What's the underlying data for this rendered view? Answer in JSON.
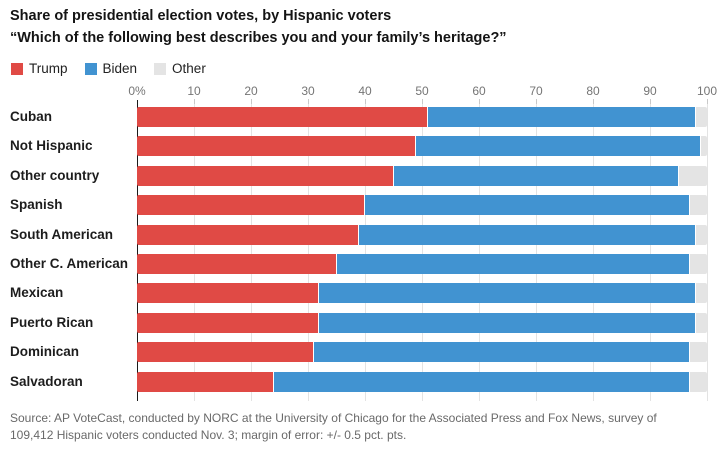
{
  "header": {
    "title": "Share of presidential election votes, by Hispanic voters",
    "subtitle": "“Which of the following best describes you and your family’s heritage?”"
  },
  "colors": {
    "trump_red": "#e04a45",
    "biden_blue": "#4193d1",
    "other_gray": "#e4e4e4",
    "axis_line": "#1a1a1a",
    "gridline": "#e3e3e3",
    "text_dark": "#141414",
    "text_muted": "#696969"
  },
  "axis": {
    "tick_values": [
      0,
      10,
      20,
      30,
      40,
      50,
      60,
      70,
      80,
      90,
      100
    ],
    "tick_labels": [
      "0%",
      "10",
      "20",
      "30",
      "40",
      "50",
      "60",
      "70",
      "80",
      "90",
      "100"
    ]
  },
  "chart_data": {
    "type": "bar",
    "orientation": "horizontal",
    "stacked": true,
    "title": "Share of presidential election votes, by Hispanic voters",
    "xlabel": "",
    "ylabel": "",
    "xlim": [
      0,
      100
    ],
    "grid": true,
    "legend_position": "top",
    "categories": [
      "Cuban",
      "Not Hispanic",
      "Other country",
      "Spanish",
      "South American",
      "Other C. American",
      "Mexican",
      "Puerto Rican",
      "Dominican",
      "Salvadoran"
    ],
    "series": [
      {
        "name": "Trump",
        "color": "#e04a45",
        "values": [
          51,
          49,
          45,
          40,
          39,
          35,
          32,
          32,
          31,
          24
        ]
      },
      {
        "name": "Biden",
        "color": "#4193d1",
        "values": [
          47,
          50,
          50,
          57,
          59,
          62,
          66,
          66,
          66,
          73
        ]
      },
      {
        "name": "Other",
        "color": "#e4e4e4",
        "values": [
          2,
          1,
          5,
          3,
          2,
          3,
          2,
          2,
          3,
          3
        ]
      }
    ]
  },
  "source": {
    "lines": [
      "Source: AP VoteCast, conducted by NORC at the University of Chicago for the Associated Press and Fox News, survey of",
      "109,412 Hispanic voters conducted Nov. 3; margin of error: +/- 0.5 pct. pts."
    ]
  }
}
